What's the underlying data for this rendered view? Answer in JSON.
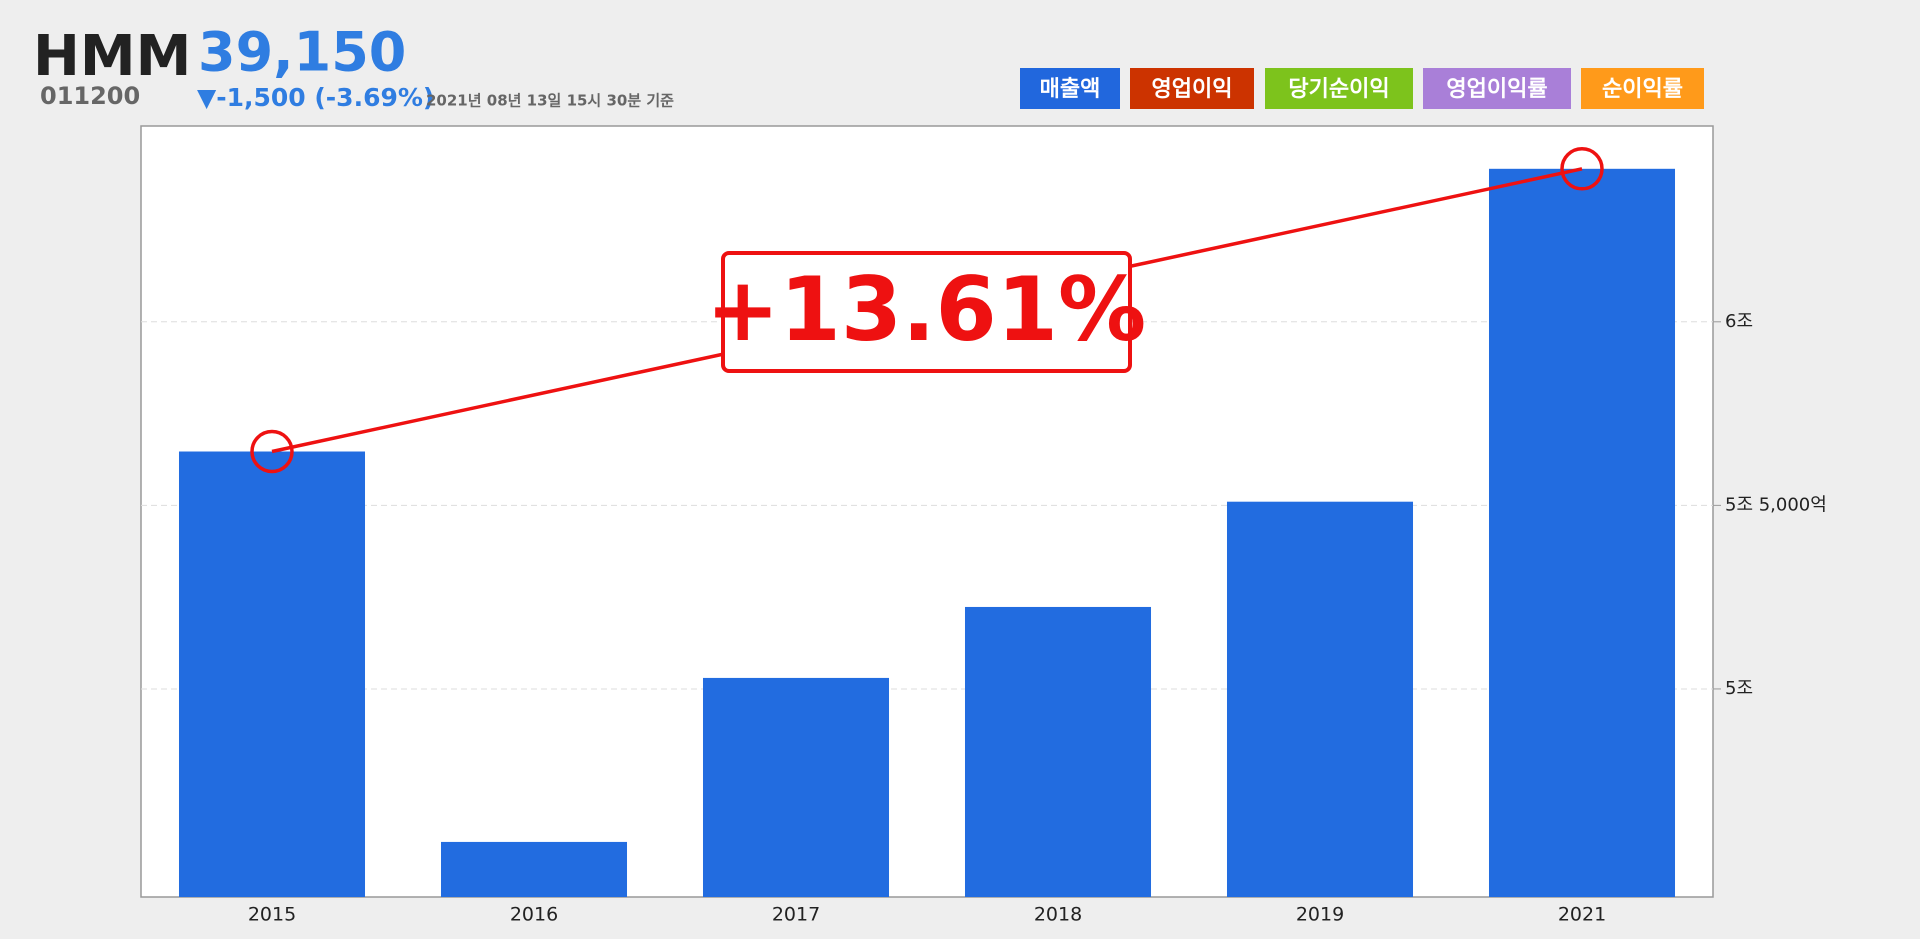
{
  "header": {
    "name": "HMM",
    "price": "39,150",
    "code": "011200",
    "change": "▼-1,500 (-3.69%)",
    "timestamp": "2021년 08년 13일 15시 30분 기준"
  },
  "tabs": [
    {
      "label": "매출액",
      "color": "#2167dd"
    },
    {
      "label": "영업이익",
      "color": "#cc3300"
    },
    {
      "label": "당기순이익",
      "color": "#7dc31c"
    },
    {
      "label": "영업이익률",
      "color": "#a97fd8"
    },
    {
      "label": "순이익률",
      "color": "#ff9a1a"
    }
  ],
  "chart_data": {
    "type": "bar",
    "categories": [
      "2015",
      "2016",
      "2017",
      "2018",
      "2019",
      "2021"
    ],
    "values": [
      56467,
      45833,
      50300,
      52233,
      55100,
      64167
    ],
    "color": "#226ce0",
    "ylim": [
      44333,
      65333
    ],
    "yticks": [
      {
        "value": 50000,
        "label": "5조"
      },
      {
        "value": 55000,
        "label": "5조 5,000억"
      },
      {
        "value": 60000,
        "label": "6조"
      }
    ],
    "grid": true,
    "annotation": "+13.61%"
  }
}
